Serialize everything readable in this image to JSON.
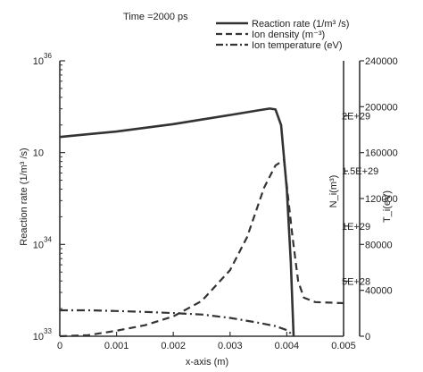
{
  "chart_data": {
    "type": "line",
    "title": "Time =2000 ps",
    "xlabel": "x-axis (m)",
    "ylabel_left": "Reaction rate (1/m³ /s)",
    "ylabel_right_density": "N_i(m³)",
    "ylabel_right_temperature": "T_i(eV)",
    "xlim": [
      0,
      0.005
    ],
    "x_ticks": [
      "0",
      "0.001",
      "0.002",
      "0.003",
      "0.004",
      "0.005"
    ],
    "left_axis": {
      "scale": "log",
      "ylim_log10": [
        33,
        36
      ],
      "tick_labels": [
        {
          "base": "10",
          "exp": "36",
          "log10": 36
        },
        {
          "base": "10",
          "exp": "",
          "log10": 35
        },
        {
          "base": "10",
          "exp": "34",
          "log10": 34
        },
        {
          "base": "10",
          "exp": "33",
          "log10": 33
        }
      ]
    },
    "right_density_axis": {
      "ylim": [
        0,
        2.5e+29
      ],
      "tick_labels": [
        {
          "label": "2E+29",
          "value": 2e+29
        },
        {
          "label": "1.5E+29",
          "value": 1.5e+29
        },
        {
          "label": "1E+29",
          "value": 1e+29
        },
        {
          "label": "5E+28",
          "value": 5e+28
        }
      ]
    },
    "right_temperature_axis": {
      "ylim": [
        0,
        240000
      ],
      "tick_labels": [
        "240000",
        "200000",
        "160000",
        "120000",
        "80000",
        "40000",
        "0"
      ],
      "tick_values": [
        240000,
        200000,
        160000,
        120000,
        80000,
        40000,
        0
      ]
    },
    "legend": {
      "position": "top-right",
      "entries": [
        {
          "name": "Reaction rate (1/m³ /s)",
          "style": "solid"
        },
        {
          "name": "Ion density (m⁻³)",
          "style": "dashed"
        },
        {
          "name": "Ion temperature (eV)",
          "style": "dashdot"
        }
      ]
    },
    "series": [
      {
        "name": "Reaction rate (1/m³ /s)",
        "axis": "left_log10",
        "style": "solid",
        "x": [
          0,
          0.0005,
          0.001,
          0.0015,
          0.002,
          0.0025,
          0.003,
          0.0035,
          0.0037,
          0.0038,
          0.0039,
          0.004,
          0.00407,
          0.00412
        ],
        "y_log10": [
          35.17,
          35.2,
          35.23,
          35.27,
          35.31,
          35.36,
          35.41,
          35.46,
          35.48,
          35.47,
          35.3,
          34.6,
          33.8,
          33
        ]
      },
      {
        "name": "Ion density (m⁻³)",
        "axis": "right_density",
        "style": "dashed",
        "x": [
          0,
          0.0005,
          0.001,
          0.0015,
          0.002,
          0.0025,
          0.003,
          0.0033,
          0.0036,
          0.0038,
          0.00395,
          0.0041,
          0.0042,
          0.0043,
          0.0045,
          0.005
        ],
        "y": [
          0,
          1e+27,
          5e+27,
          1e+28,
          1.8e+28,
          3.2e+28,
          6e+28,
          9e+28,
          1.35e+29,
          1.55e+29,
          1.6e+29,
          9e+28,
          5e+28,
          3.5e+28,
          3.1e+28,
          3e+28
        ]
      },
      {
        "name": "Ion temperature (eV)",
        "axis": "right_temperature",
        "style": "dashdot",
        "x": [
          0,
          0.0005,
          0.001,
          0.0015,
          0.002,
          0.0025,
          0.003,
          0.0035,
          0.0038,
          0.004,
          0.00412
        ],
        "y": [
          22600,
          22600,
          22000,
          21200,
          20200,
          18900,
          16000,
          11800,
          8800,
          5300,
          400
        ]
      }
    ]
  }
}
